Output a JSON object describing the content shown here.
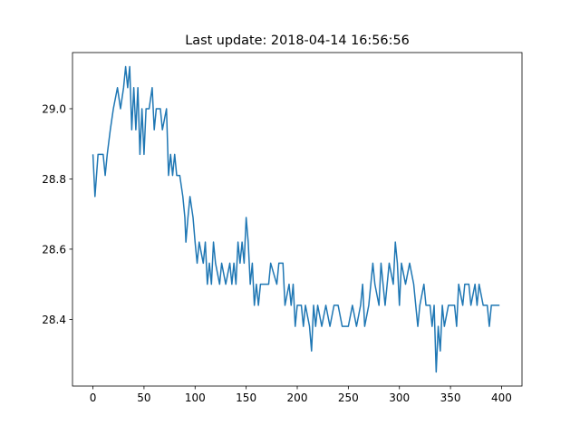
{
  "chart_data": {
    "type": "line",
    "title": "Last update: 2018-04-14 16:56:56",
    "x": [
      0,
      2,
      5,
      10,
      12,
      14,
      17,
      20,
      24,
      27,
      30,
      32,
      34,
      36,
      38,
      40,
      42,
      44,
      46,
      48,
      50,
      52,
      55,
      58,
      60,
      62,
      66,
      68,
      72,
      74,
      76,
      78,
      80,
      82,
      85,
      88,
      90,
      91,
      93,
      95,
      98,
      100,
      102,
      104,
      108,
      110,
      112,
      114,
      116,
      118,
      120,
      124,
      126,
      130,
      134,
      136,
      138,
      140,
      142,
      144,
      146,
      148,
      150,
      152,
      154,
      156,
      158,
      160,
      162,
      164,
      172,
      174,
      180,
      182,
      186,
      188,
      192,
      194,
      196,
      198,
      200,
      204,
      206,
      208,
      212,
      214,
      216,
      218,
      220,
      224,
      228,
      232,
      236,
      240,
      244,
      250,
      254,
      258,
      262,
      264,
      266,
      270,
      274,
      276,
      280,
      282,
      286,
      290,
      294,
      296,
      298,
      300,
      302,
      306,
      310,
      314,
      316,
      318,
      320,
      324,
      326,
      330,
      332,
      334,
      336,
      338,
      340,
      342,
      344,
      348,
      354,
      356,
      358,
      362,
      364,
      368,
      370,
      374,
      376,
      378,
      382,
      386,
      388,
      390,
      398
    ],
    "series": [
      {
        "color": "#1f77b4",
        "values": [
          28.87,
          28.75,
          28.87,
          28.87,
          28.81,
          28.87,
          28.94,
          29.0,
          29.06,
          29.0,
          29.06,
          29.12,
          29.06,
          29.12,
          28.94,
          29.06,
          28.94,
          29.06,
          28.87,
          29.0,
          28.87,
          29.0,
          29.0,
          29.06,
          28.94,
          29.0,
          29.0,
          28.94,
          29.0,
          28.81,
          28.87,
          28.81,
          28.87,
          28.81,
          28.81,
          28.75,
          28.69,
          28.62,
          28.69,
          28.75,
          28.69,
          28.62,
          28.56,
          28.62,
          28.56,
          28.62,
          28.5,
          28.56,
          28.5,
          28.62,
          28.56,
          28.5,
          28.56,
          28.5,
          28.56,
          28.5,
          28.56,
          28.5,
          28.62,
          28.56,
          28.62,
          28.56,
          28.69,
          28.62,
          28.5,
          28.56,
          28.44,
          28.5,
          28.44,
          28.5,
          28.5,
          28.56,
          28.5,
          28.56,
          28.56,
          28.44,
          28.5,
          28.44,
          28.5,
          28.38,
          28.44,
          28.44,
          28.38,
          28.44,
          28.38,
          28.31,
          28.44,
          28.38,
          28.44,
          28.38,
          28.44,
          28.38,
          28.44,
          28.44,
          28.38,
          28.38,
          28.44,
          28.38,
          28.44,
          28.5,
          28.38,
          28.44,
          28.56,
          28.5,
          28.44,
          28.56,
          28.44,
          28.56,
          28.5,
          28.62,
          28.56,
          28.44,
          28.56,
          28.5,
          28.56,
          28.5,
          28.44,
          28.38,
          28.44,
          28.5,
          28.44,
          28.44,
          28.38,
          28.44,
          28.25,
          28.38,
          28.31,
          28.44,
          28.38,
          28.44,
          28.44,
          28.38,
          28.5,
          28.44,
          28.5,
          28.5,
          28.44,
          28.5,
          28.44,
          28.5,
          28.44,
          28.44,
          28.38,
          28.44,
          28.44
        ]
      }
    ],
    "xlim": [
      -20,
      420
    ],
    "xticks": [
      0,
      50,
      100,
      150,
      200,
      250,
      300,
      350,
      400
    ],
    "ylim": [
      28.21,
      29.16
    ],
    "yticks": [
      28.4,
      28.6,
      28.8,
      {
        "value": 29.0,
        "label": "29.0"
      }
    ]
  }
}
